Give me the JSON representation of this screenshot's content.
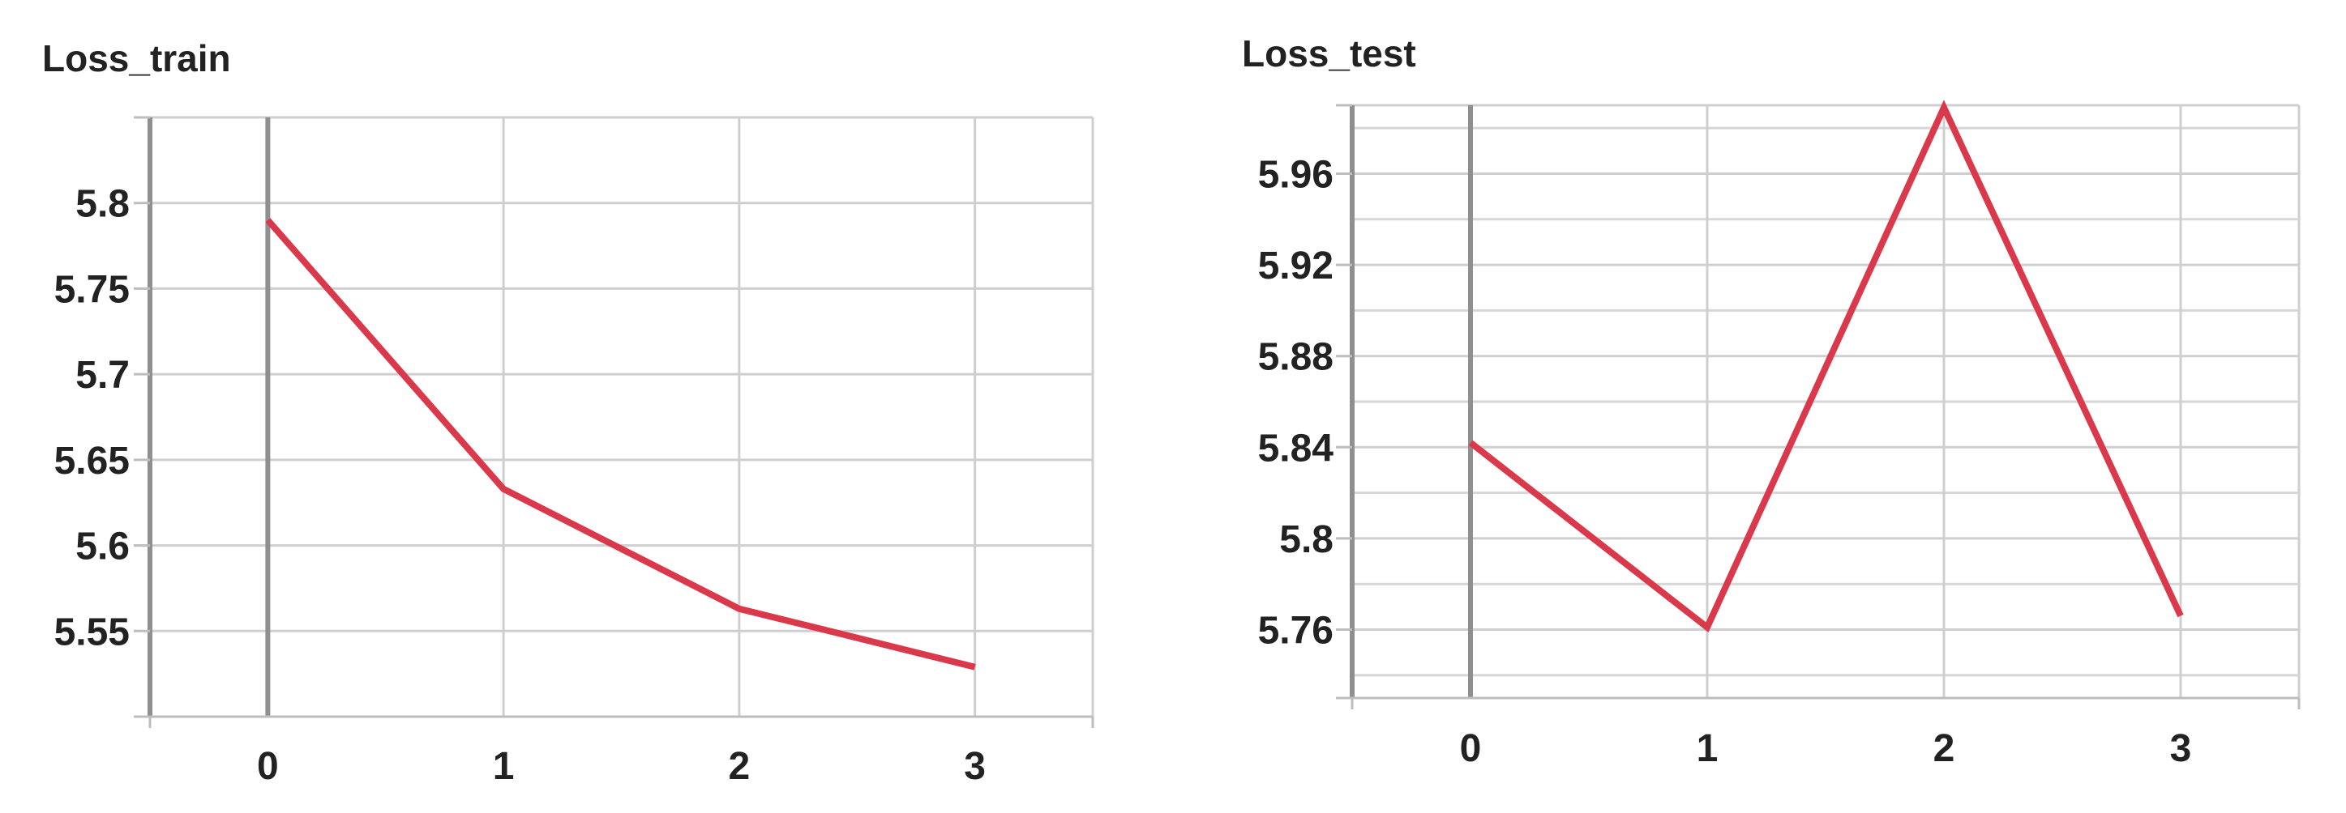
{
  "colors": {
    "series": "#d9394a"
  },
  "chart_data": [
    {
      "type": "line",
      "title": "Loss_train",
      "xlabel": "",
      "ylabel": "",
      "x": [
        0,
        1,
        2,
        3
      ],
      "series": [
        {
          "values": [
            5.79,
            5.633,
            5.563,
            5.529
          ]
        }
      ],
      "xlim": [
        -0.5,
        3.5
      ],
      "ylim": [
        5.5,
        5.85
      ],
      "xticks": [
        0,
        1,
        2,
        3
      ],
      "yticks": [
        5.55,
        5.6,
        5.65,
        5.7,
        5.75,
        5.8
      ],
      "ytick_labels": [
        "5.55",
        "5.6",
        "5.65",
        "5.7",
        "5.75",
        "5.8"
      ],
      "grid": true,
      "legend": "none"
    },
    {
      "type": "line",
      "title": "Loss_test",
      "xlabel": "",
      "ylabel": "",
      "x": [
        0,
        1,
        2,
        3
      ],
      "series": [
        {
          "values": [
            5.842,
            5.761,
            5.989,
            5.766
          ]
        }
      ],
      "xlim": [
        -0.5,
        3.5
      ],
      "ylim": [
        5.73,
        5.99
      ],
      "xticks": [
        0,
        1,
        2,
        3
      ],
      "yticks": [
        5.76,
        5.8,
        5.84,
        5.88,
        5.92,
        5.96
      ],
      "ytick_labels": [
        "5.76",
        "5.8",
        "5.84",
        "5.88",
        "5.92",
        "5.96"
      ],
      "minor_yticks": [
        5.74,
        5.78,
        5.82,
        5.86,
        5.9,
        5.94,
        5.98
      ],
      "grid": true,
      "legend": "none"
    }
  ]
}
